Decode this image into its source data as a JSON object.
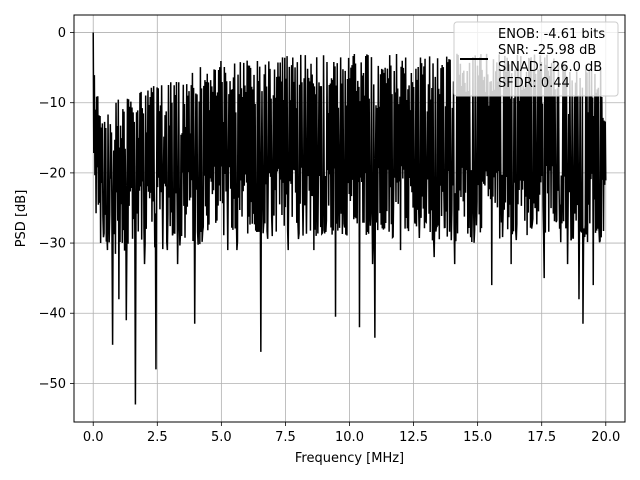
{
  "chart_data": {
    "type": "line",
    "title": "",
    "xlabel": "Frequency [MHz]",
    "ylabel": "PSD [dB]",
    "xlim": [
      -0.75,
      20.75
    ],
    "ylim": [
      -55.5,
      2.5
    ],
    "x_ticks": [
      0.0,
      2.5,
      5.0,
      7.5,
      10.0,
      12.5,
      15.0,
      17.5,
      20.0
    ],
    "x_tick_labels": [
      "0.0",
      "2.5",
      "5.0",
      "7.5",
      "10.0",
      "12.5",
      "15.0",
      "17.5",
      "20.0"
    ],
    "y_ticks": [
      0,
      -10,
      -20,
      -30,
      -40,
      -50
    ],
    "y_tick_labels": [
      "0",
      "−10",
      "−20",
      "−30",
      "−40",
      "−50"
    ],
    "grid": true,
    "legend": {
      "placement": "top-right",
      "entries": [
        "ENOB: -4.61 bits",
        "SNR: -25.98 dB",
        "SINAD: -26.0 dB",
        "SFDR: 0.44"
      ]
    },
    "series": [
      {
        "color": "#000000",
        "x_range": [
          0.0,
          20.0
        ],
        "num_points": 900,
        "upper_envelope": [
          [
            0.0,
            0
          ],
          [
            0.1,
            -8
          ],
          [
            0.5,
            -10
          ],
          [
            1.5,
            -9
          ],
          [
            2.5,
            -7
          ],
          [
            3.5,
            -7
          ],
          [
            4.0,
            -5
          ],
          [
            5.0,
            -4
          ],
          [
            7.0,
            -4
          ],
          [
            7.5,
            -3
          ],
          [
            10.0,
            -3
          ],
          [
            12.5,
            -3
          ],
          [
            15.0,
            -3
          ],
          [
            17.5,
            -3
          ],
          [
            19.0,
            -4
          ],
          [
            20.0,
            -5
          ]
        ],
        "lower_envelope": [
          [
            0.0,
            -25
          ],
          [
            0.5,
            -28
          ],
          [
            1.5,
            -30
          ],
          [
            2.5,
            -28
          ],
          [
            5.0,
            -27
          ],
          [
            10.0,
            -27
          ],
          [
            15.0,
            -27
          ],
          [
            20.0,
            -27
          ]
        ],
        "notches": [
          [
            0.3,
            -30
          ],
          [
            0.55,
            -31
          ],
          [
            0.75,
            -44.5
          ],
          [
            1.0,
            -38
          ],
          [
            1.3,
            -41
          ],
          [
            1.65,
            -53
          ],
          [
            2.0,
            -33
          ],
          [
            2.45,
            -48
          ],
          [
            2.9,
            -31
          ],
          [
            3.3,
            -33
          ],
          [
            3.95,
            -41.5
          ],
          [
            5.25,
            -31
          ],
          [
            5.6,
            -31
          ],
          [
            6.55,
            -45.5
          ],
          [
            7.6,
            -31
          ],
          [
            8.6,
            -31
          ],
          [
            9.45,
            -40.5
          ],
          [
            10.4,
            -42
          ],
          [
            10.9,
            -33
          ],
          [
            11.0,
            -43.5
          ],
          [
            12.0,
            -31
          ],
          [
            13.3,
            -32
          ],
          [
            14.1,
            -33
          ],
          [
            15.55,
            -36
          ],
          [
            16.3,
            -33
          ],
          [
            17.6,
            -35
          ],
          [
            18.5,
            -33
          ],
          [
            18.95,
            -38
          ],
          [
            19.1,
            -41.5
          ],
          [
            19.5,
            -36
          ]
        ]
      }
    ]
  }
}
